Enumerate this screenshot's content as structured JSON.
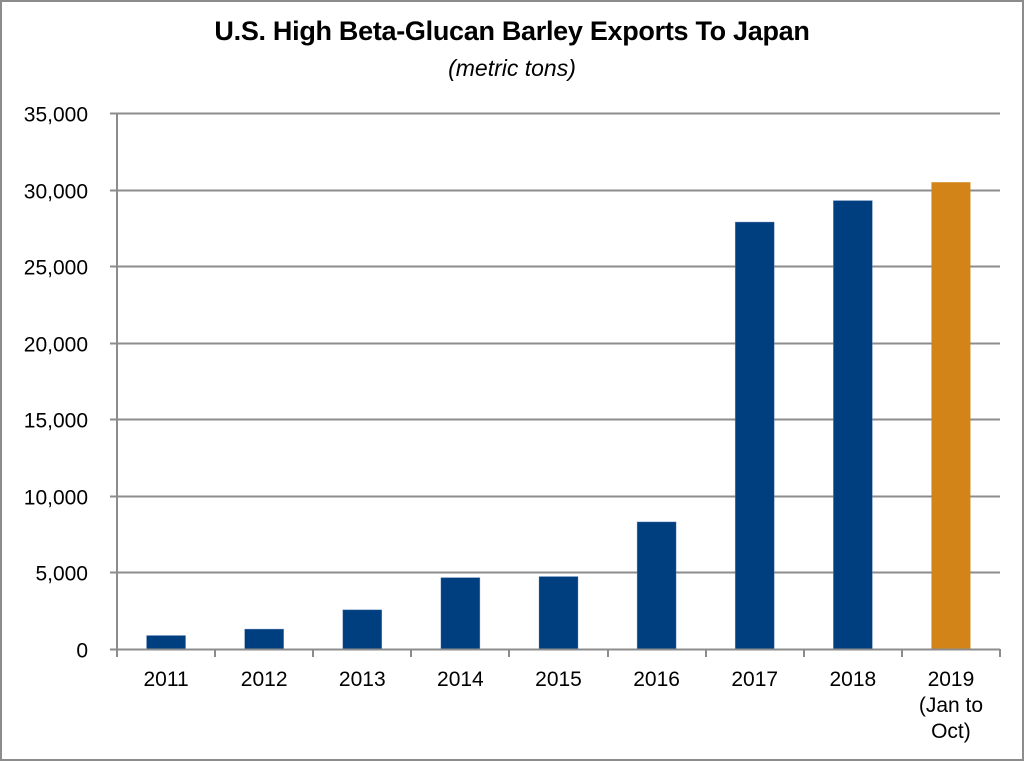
{
  "chart_data": {
    "type": "bar",
    "title": "U.S. High Beta-Glucan Barley Exports To Japan",
    "subtitle": "(metric tons)",
    "xlabel": "",
    "ylabel": "",
    "categories": [
      "2011",
      "2012",
      "2013",
      "2014",
      "2015",
      "2016",
      "2017",
      "2018",
      "2019\n(Jan to\nOct)"
    ],
    "category_lines": [
      [
        "2011"
      ],
      [
        "2012"
      ],
      [
        "2013"
      ],
      [
        "2014"
      ],
      [
        "2015"
      ],
      [
        "2016"
      ],
      [
        "2017"
      ],
      [
        "2018"
      ],
      [
        "2019",
        "(Jan to",
        "Oct)"
      ]
    ],
    "values": [
      880,
      1300,
      2560,
      4660,
      4730,
      8300,
      27880,
      29280,
      30480
    ],
    "bar_colors": [
      "#003F7F",
      "#003F7F",
      "#003F7F",
      "#003F7F",
      "#003F7F",
      "#003F7F",
      "#003F7F",
      "#003F7F",
      "#D38419"
    ],
    "ylim": [
      0,
      35000
    ],
    "yticks": [
      0,
      5000,
      10000,
      15000,
      20000,
      25000,
      30000,
      35000
    ],
    "ytick_labels": [
      "0",
      "5,000",
      "10,000",
      "15,000",
      "20,000",
      "25,000",
      "30,000",
      "35,000"
    ],
    "grid": true,
    "legend": null
  },
  "colors": {
    "primary_bar": "#003F7F",
    "highlight_bar": "#D38419",
    "grid": "#8c8c8c",
    "border": "#8c8c8c"
  }
}
